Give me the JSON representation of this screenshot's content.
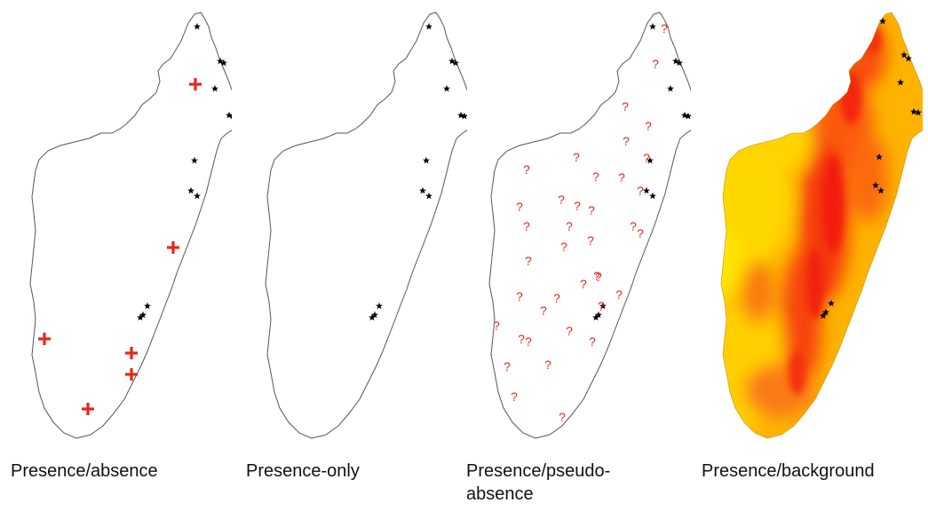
{
  "panels": [
    {
      "id": "presence-absence",
      "caption": "Presence/absence"
    },
    {
      "id": "presence-only",
      "caption": "Presence-only"
    },
    {
      "id": "presence-pseudo-absence",
      "caption": "Presence/pseudo-absence"
    },
    {
      "id": "presence-background",
      "caption": "Presence/background"
    }
  ],
  "markers": {
    "presence_symbol": "★",
    "absence_symbol": "+",
    "pseudo_absence_symbol": "?"
  },
  "colors": {
    "absence_marker": "#e8261a",
    "presence_marker": "#000000",
    "background_low": "#ffe100",
    "background_high": "#f52a0a"
  }
}
